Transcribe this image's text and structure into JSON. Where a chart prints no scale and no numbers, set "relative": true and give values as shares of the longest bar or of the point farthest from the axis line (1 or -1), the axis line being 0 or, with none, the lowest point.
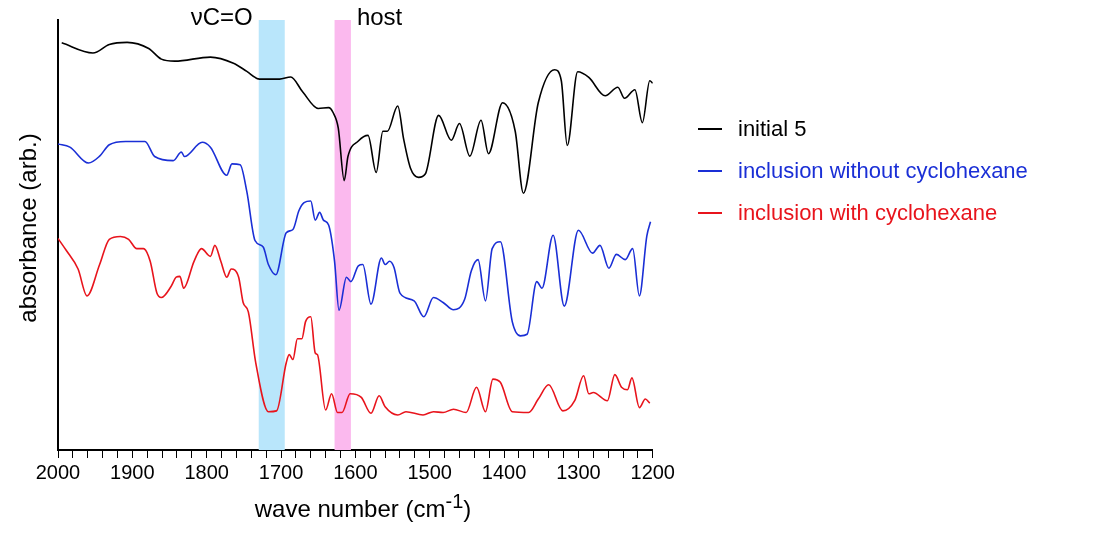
{
  "chart_data": {
    "type": "line",
    "relative": true,
    "xlabel": "wave number (cm$^{-1}$)",
    "ylabel": "absorbance (arb.)",
    "xlim": [
      2000,
      1200
    ],
    "xticks": [
      2000,
      {
        "value": 1980,
        "label": null
      },
      {
        "value": 1960,
        "label": null
      },
      {
        "value": 1940,
        "label": null
      },
      {
        "value": 1920,
        "label": null
      },
      1900,
      {
        "value": 1880,
        "label": null
      },
      {
        "value": 1860,
        "label": null
      },
      {
        "value": 1840,
        "label": null
      },
      {
        "value": 1820,
        "label": null
      },
      1800,
      {
        "value": 1780,
        "label": null
      },
      {
        "value": 1760,
        "label": null
      },
      {
        "value": 1740,
        "label": null
      },
      {
        "value": 1720,
        "label": null
      },
      1700,
      {
        "value": 1680,
        "label": null
      },
      {
        "value": 1660,
        "label": null
      },
      {
        "value": 1640,
        "label": null
      },
      {
        "value": 1620,
        "label": null
      },
      1600,
      {
        "value": 1580,
        "label": null
      },
      {
        "value": 1560,
        "label": null
      },
      {
        "value": 1540,
        "label": null
      },
      {
        "value": 1520,
        "label": null
      },
      1500,
      {
        "value": 1480,
        "label": null
      },
      {
        "value": 1460,
        "label": null
      },
      {
        "value": 1440,
        "label": null
      },
      {
        "value": 1420,
        "label": null
      },
      1400,
      {
        "value": 1380,
        "label": null
      },
      {
        "value": 1360,
        "label": null
      },
      {
        "value": 1340,
        "label": null
      },
      {
        "value": 1320,
        "label": null
      },
      1300,
      {
        "value": 1280,
        "label": null
      },
      {
        "value": 1260,
        "label": null
      },
      {
        "value": 1240,
        "label": null
      },
      {
        "value": 1220,
        "label": null
      },
      1200
    ],
    "tick_labels": "x",
    "grid": false,
    "legend": "right",
    "marker": "none",
    "line_style": "solid",
    "bands": [
      {
        "axis": "x",
        "from": 1730,
        "to": 1695,
        "label": "νC=O",
        "color": "#b9e6fb"
      },
      {
        "axis": "x",
        "from": 1628,
        "to": 1606,
        "label": "host",
        "color": "#fbb9ee"
      }
    ],
    "series": [
      {
        "name": "initial 5",
        "color": "#000000",
        "x": [
          1995,
          1953,
          1931,
          1907,
          1878,
          1861,
          1843,
          1795,
          1764,
          1746,
          1729,
          1702,
          1687,
          1671,
          1650,
          1636,
          1630,
          1623,
          1615,
          1610,
          1596,
          1583,
          1572,
          1563,
          1557,
          1543,
          1535,
          1526,
          1515,
          1506,
          1488,
          1471,
          1460,
          1446,
          1431,
          1421,
          1402,
          1385,
          1374,
          1354,
          1332,
          1323,
          1315,
          1301,
          1286,
          1264,
          1247,
          1238,
          1224,
          1214,
          1204,
          1200
        ],
        "values": [
          0.999,
          0.974,
          0.995,
          1,
          0.985,
          0.959,
          0.954,
          0.964,
          0.949,
          0.929,
          0.91,
          0.91,
          0.915,
          0.879,
          0.838,
          0.84,
          0.828,
          0.79,
          0.661,
          0.72,
          0.758,
          0.772,
          0.681,
          0.782,
          0.782,
          0.844,
          0.762,
          0.692,
          0.669,
          0.677,
          0.821,
          0.76,
          0.801,
          0.721,
          0.809,
          0.727,
          0.852,
          0.782,
          0.63,
          0.852,
          0.933,
          0.906,
          0.747,
          0.928,
          0.914,
          0.869,
          0.89,
          0.863,
          0.884,
          0.803,
          0.906,
          0.9
        ]
      },
      {
        "name": "inclusion without cyclohexane",
        "color": "#1a2fd6",
        "x": [
          2000,
          1984,
          1959,
          1944,
          1931,
          1909,
          1883,
          1870,
          1845,
          1834,
          1830,
          1806,
          1795,
          1773,
          1766,
          1755,
          1746,
          1735,
          1724,
          1717,
          1707,
          1693,
          1684,
          1676,
          1669,
          1660,
          1654,
          1648,
          1643,
          1636,
          1628,
          1622,
          1612,
          1606,
          1596,
          1590,
          1579,
          1565,
          1560,
          1554,
          1548,
          1540,
          1521,
          1508,
          1495,
          1482,
          1468,
          1453,
          1444,
          1435,
          1425,
          1416,
          1405,
          1389,
          1378,
          1369,
          1356,
          1349,
          1334,
          1319,
          1300,
          1281,
          1271,
          1259,
          1249,
          1237,
          1227,
          1218,
          1208,
          1203
        ],
        "values": [
          0.751,
          0.743,
          0.704,
          0.721,
          0.749,
          0.757,
          0.757,
          0.72,
          0.71,
          0.731,
          0.72,
          0.755,
          0.743,
          0.674,
          0.702,
          0.7,
          0.634,
          0.514,
          0.498,
          0.455,
          0.43,
          0.533,
          0.541,
          0.587,
          0.607,
          0.611,
          0.564,
          0.583,
          0.564,
          0.552,
          0.463,
          0.343,
          0.424,
          0.413,
          0.452,
          0.455,
          0.358,
          0.471,
          0.455,
          0.463,
          0.448,
          0.385,
          0.366,
          0.327,
          0.374,
          0.362,
          0.344,
          0.37,
          0.44,
          0.467,
          0.366,
          0.494,
          0.511,
          0.315,
          0.28,
          0.284,
          0.413,
          0.397,
          0.527,
          0.353,
          0.539,
          0.483,
          0.502,
          0.446,
          0.48,
          0.467,
          0.494,
          0.378,
          0.525,
          0.56
        ]
      },
      {
        "name": "inclusion with cyclohexane",
        "color": "#e8141c",
        "x": [
          2000,
          1989,
          1973,
          1961,
          1944,
          1931,
          1916,
          1905,
          1894,
          1885,
          1876,
          1867,
          1861,
          1848,
          1841,
          1836,
          1831,
          1817,
          1807,
          1795,
          1789,
          1781,
          1773,
          1767,
          1757,
          1751,
          1744,
          1734,
          1717,
          1706,
          1693,
          1689,
          1684,
          1678,
          1672,
          1667,
          1660,
          1654,
          1651,
          1640,
          1632,
          1624,
          1618,
          1607,
          1592,
          1579,
          1568,
          1560,
          1543,
          1532,
          1509,
          1495,
          1482,
          1468,
          1451,
          1437,
          1425,
          1415,
          1405,
          1389,
          1367,
          1354,
          1340,
          1321,
          1305,
          1293,
          1286,
          1280,
          1261,
          1251,
          1242,
          1234,
          1228,
          1218,
          1210,
          1204
        ],
        "values": [
          0.519,
          0.49,
          0.444,
          0.378,
          0.455,
          0.517,
          0.524,
          0.517,
          0.494,
          0.494,
          0.463,
          0.385,
          0.374,
          0.401,
          0.424,
          0.426,
          0.397,
          0.463,
          0.494,
          0.475,
          0.502,
          0.463,
          0.424,
          0.444,
          0.424,
          0.362,
          0.339,
          0.214,
          0.094,
          0.096,
          0.214,
          0.234,
          0.222,
          0.273,
          0.273,
          0.315,
          0.327,
          0.238,
          0.234,
          0.098,
          0.138,
          0.092,
          0.092,
          0.138,
          0.129,
          0.09,
          0.133,
          0.106,
          0.086,
          0.094,
          0.086,
          0.094,
          0.092,
          0.1,
          0.092,
          0.154,
          0.094,
          0.174,
          0.166,
          0.094,
          0.092,
          0.125,
          0.16,
          0.096,
          0.121,
          0.182,
          0.138,
          0.141,
          0.121,
          0.185,
          0.154,
          0.148,
          0.177,
          0.104,
          0.125,
          0.115
        ]
      }
    ]
  }
}
